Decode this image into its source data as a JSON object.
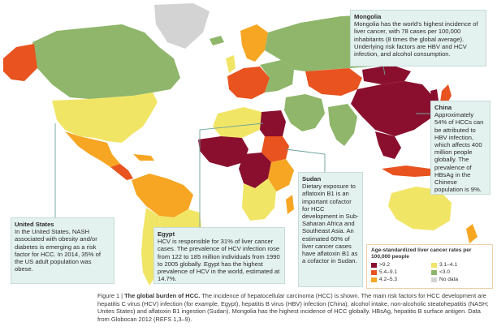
{
  "colors": {
    "ocean": "#ffffff",
    "gt92": "#8a0f2e",
    "r54_91": "#e8531f",
    "r42_53": "#f6a623",
    "r31_41": "#f1e566",
    "lt30": "#8fb66a",
    "nodata": "#d3d3d3",
    "callout_bg": "#e3f1ef"
  },
  "callouts": {
    "mongolia": {
      "title": "Mongolia",
      "body": "Mongolia has the world's highest incidence of liver cancer, with 78 cases per 100,000 inhabitants (8 times the global average). Underlying risk factors are HBV and HCV infection, and alcohol consumption."
    },
    "china": {
      "title": "China",
      "body": "Approximately 54% of HCCs can be attributed to HBV infection, which affects 400 million people globally. The prevalence of HBsAg in the Chinese population is 9%."
    },
    "sudan": {
      "title": "Sudan",
      "body": "Dietary exposure to aflatoxin B1 is an important cofactor for HCC development in Sub-Saharan Africa and Southeast Asia. An estimated 60% of liver cancer cases have aflatoxin B1 as a cofactor in Sudan."
    },
    "egypt": {
      "title": "Egypt",
      "body": "HCV is responsible for 31% of liver cancer cases. The prevalence of HCV infection rose from 122 to 185 million individuals from 1990 to 2005 globally. Egypt has the highest prevalence of HCV in the world, estimated at 14.7%."
    },
    "us": {
      "title": "United States",
      "body": "In the United States, NASH associated with obesity and/or diabetes is emerging as a risk factor for HCC. In 2014, 35% of the US adult population was obese."
    }
  },
  "legend": {
    "title": "Age-standardized liver cancer rates per 100,000 people",
    "items": [
      {
        "label": ">9.2",
        "color": "#8a0f2e"
      },
      {
        "label": "3.1–4.1",
        "color": "#f1e566"
      },
      {
        "label": "5.4–9.1",
        "color": "#e8531f"
      },
      {
        "label": "<3.0",
        "color": "#8fb66a"
      },
      {
        "label": "4.2–5.3",
        "color": "#f6a623"
      },
      {
        "label": "No data",
        "color": "#d3d3d3"
      }
    ]
  },
  "caption": {
    "lead": "Figure 1 | ",
    "bold": "The global burden of HCC.",
    "text": " The incidence of hepatocellular carcinoma (HCC) is shown. The main risk factors for HCC development are hepatitis C virus (HCV) infection (for example, Egypt), hepatitis B virus (HBV) infection (China), alcohol intake, non-alcoholic steatohepatitis (NASH; Unites States) and aflatoxin B1 ingestion (Sudan). Mongolia has the highest incidence of HCC globally. HBsAg, hepatitis B surface antigen. Data from Globocan 2012 (REFS 1,3–9)."
  }
}
